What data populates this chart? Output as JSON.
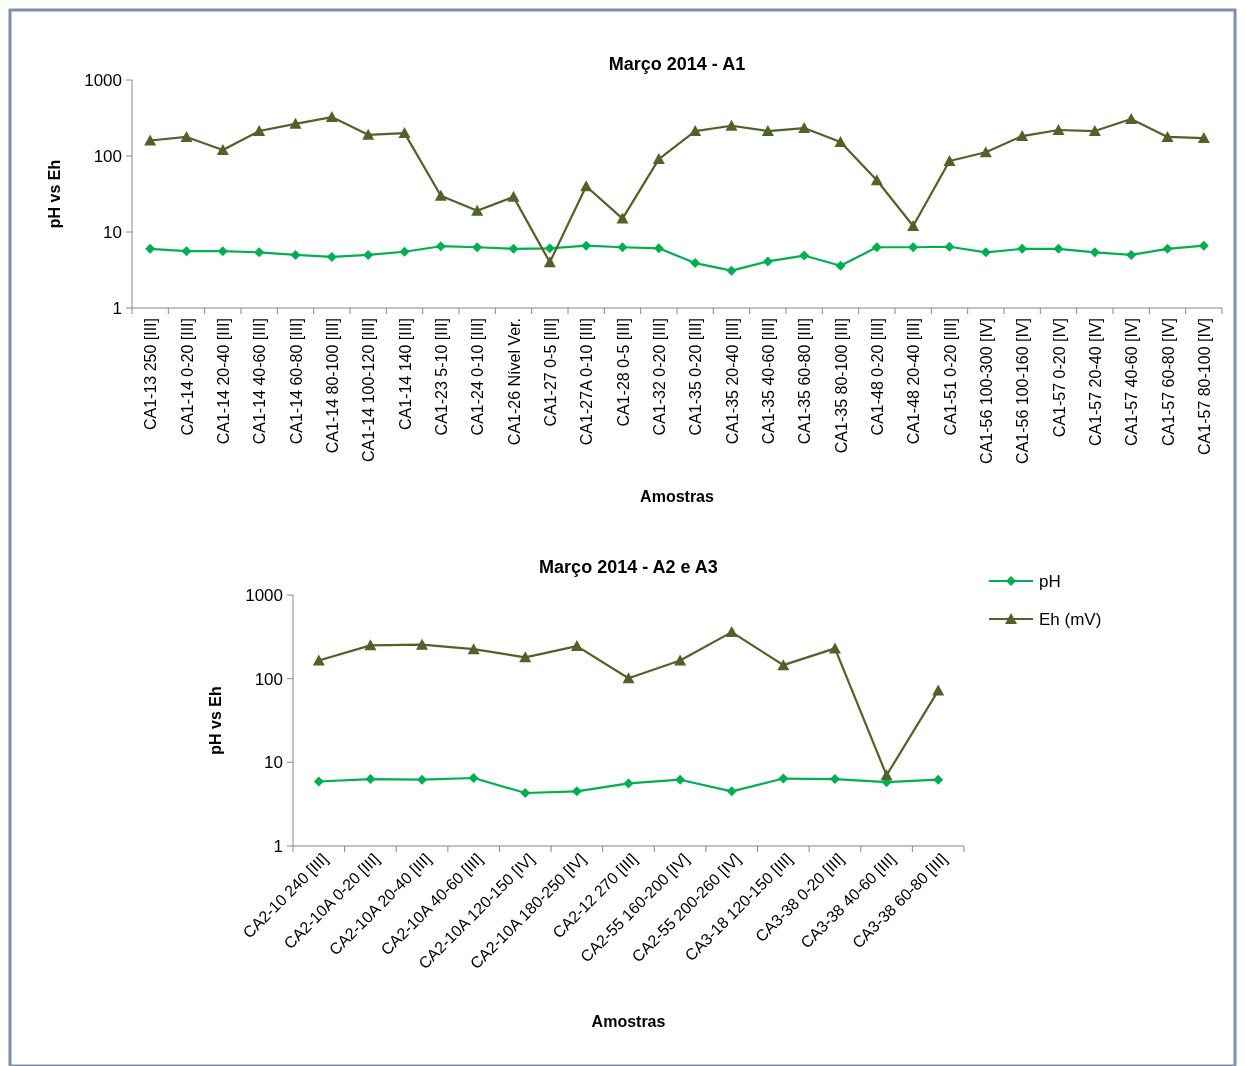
{
  "chart_data": [
    {
      "type": "line",
      "title": "Março 2014 - A1",
      "xlabel": "Amostras",
      "ylabel": "pH vs Eh",
      "log": "y",
      "ylim": [
        1,
        1000
      ],
      "yticks": [
        1,
        10,
        100,
        1000
      ],
      "grid": false,
      "legend": false,
      "categories": [
        "CA1-13 250 [III]",
        "CA1-14 0-20 [III]",
        "CA1-14 20-40 [III]",
        "CA1-14 40-60 [III]",
        "CA1-14 60-80 [III]",
        "CA1-14 80-100 [III]",
        "CA1-14 100-120 [III]",
        "CA1-14 140 [III]",
        "CA1-23 5-10 [III]",
        "CA1-24 0-10 [III]",
        "CA1-26 Nível Ver.",
        "CA1-27 0-5 [III]",
        "CA1-27A 0-10 [III]",
        "CA1-28 0-5 [III]",
        "CA1-32 0-20 [III]",
        "CA1-35 0-20 [III]",
        "CA1-35 20-40 [III]",
        "CA1-35 40-60 [III]",
        "CA1-35 60-80 [III]",
        "CA1-35 80-100 [III]",
        "CA1-48 0-20 [III]",
        "CA1-48 20-40 [III]",
        "CA1-51 0-20 [III]",
        "CA1-56 100-300 [IV]",
        "CA1-56 100-160 [IV]",
        "CA1-57 0-20 [IV]",
        "CA1-57 20-40 [IV]",
        "CA1-57 40-60 [IV]",
        "CA1-57 60-80 [IV]",
        "CA1-57 80-100 [IV]"
      ],
      "series": [
        {
          "color": "#00b050",
          "marker": "diamond",
          "values": [
            6.0,
            5.6,
            5.6,
            5.4,
            5.0,
            4.7,
            5.0,
            5.5,
            6.5,
            6.3,
            6.0,
            6.1,
            6.6,
            6.3,
            6.1,
            3.9,
            3.1,
            4.1,
            4.9,
            3.6,
            6.3,
            6.3,
            6.4,
            5.4,
            6.0,
            6.0,
            5.4,
            5.0,
            6.0,
            6.6
          ]
        },
        {
          "color": "#4f6228",
          "marker": "triangle",
          "values": [
            160,
            178,
            120,
            213,
            265,
            325,
            190,
            200,
            30,
            19,
            29,
            4,
            40,
            15,
            91,
            213,
            250,
            213,
            233,
            153,
            48,
            12,
            86,
            112,
            183,
            220,
            213,
            307,
            178,
            172
          ]
        }
      ]
    },
    {
      "type": "line",
      "title": "Março 2014 - A2 e A3",
      "xlabel": "Amostras",
      "ylabel": "pH vs Eh",
      "log": "y",
      "ylim": [
        1,
        1000
      ],
      "yticks": [
        1,
        10,
        100,
        1000
      ],
      "grid": false,
      "legend": "right",
      "categories": [
        "CA2-10 240 [III]",
        "CA2-10A 0-20 [III]",
        "CA2-10A 20-40 [III]",
        "CA2-10A 40-60 [III]",
        "CA2-10A 120-150 [IV]",
        "CA2-10A 180-250 [IV]",
        "CA2-12 270 [III]",
        "CA2-55 160-200 [IV]",
        "CA2-55 200-260 [IV]",
        "CA3-18 120-150 [III]",
        "CA3-38 0-20 [III]",
        "CA3-38 40-60 [III]",
        "CA3-38 60-80 [III]"
      ],
      "series": [
        {
          "name": "pH",
          "color": "#00b050",
          "marker": "diamond",
          "values": [
            5.9,
            6.3,
            6.2,
            6.5,
            4.3,
            4.5,
            5.6,
            6.2,
            4.5,
            6.4,
            6.3,
            5.8,
            6.2
          ]
        },
        {
          "name": "Eh (mV)",
          "color": "#4f6228",
          "marker": "triangle",
          "values": [
            165,
            250,
            255,
            225,
            180,
            245,
            101,
            165,
            360,
            145,
            230,
            7,
            72
          ]
        }
      ]
    }
  ]
}
